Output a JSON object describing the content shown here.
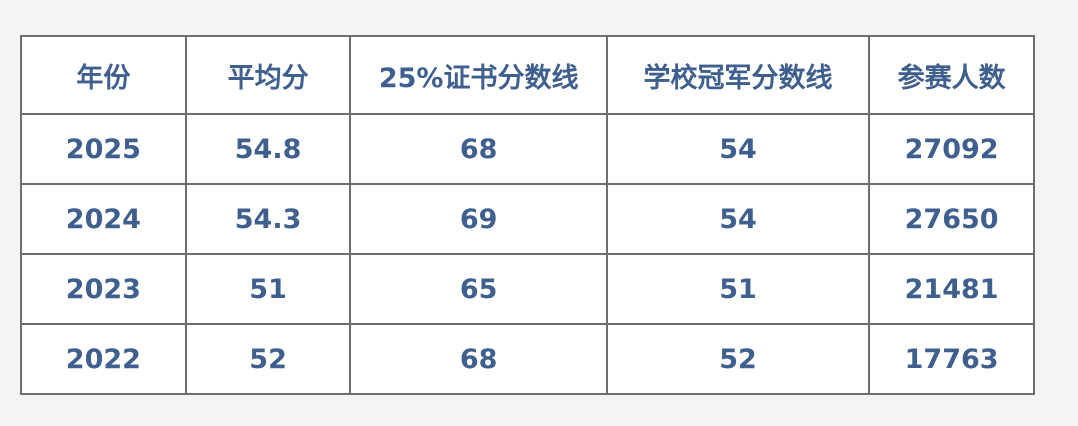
{
  "table": {
    "headers": [
      "年份",
      "平均分",
      "25%证书分数线",
      "学校冠军分数线",
      "参赛人数"
    ],
    "rows": [
      [
        "2025",
        "54.8",
        "68",
        "54",
        "27092"
      ],
      [
        "2024",
        "54.3",
        "69",
        "54",
        "27650"
      ],
      [
        "2023",
        "51",
        "65",
        "51",
        "21481"
      ],
      [
        "2022",
        "52",
        "68",
        "52",
        "17763"
      ]
    ]
  },
  "colors": {
    "text": "#3f5f8f",
    "border": "#6e6e6e",
    "background": "#f4f4f4"
  }
}
